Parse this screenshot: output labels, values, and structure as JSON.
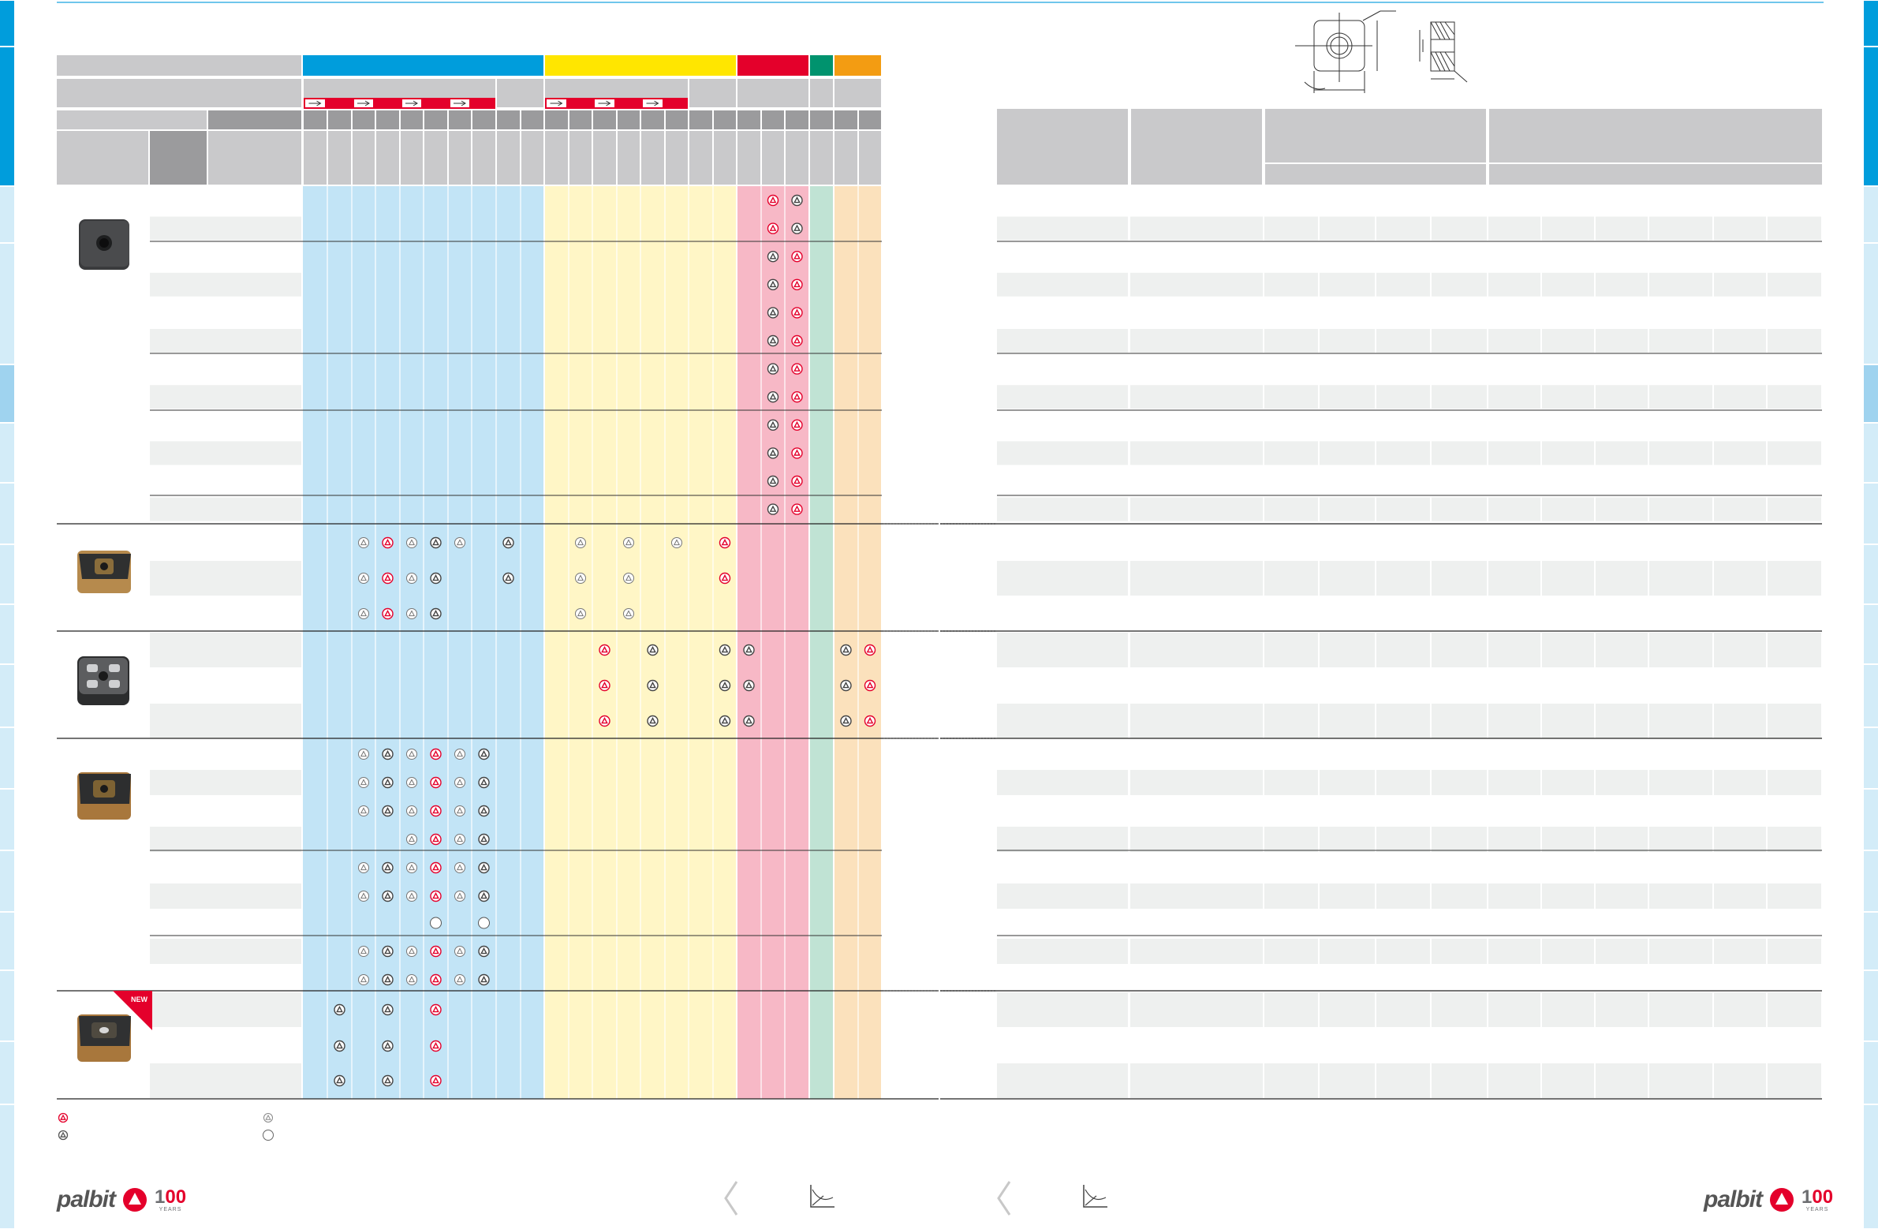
{
  "colors": {
    "blue": "#009ddc",
    "yellow": "#ffe600",
    "red": "#e4002b",
    "green": "#00936e",
    "orange": "#f39c12",
    "light_blue": "#c2e4f6",
    "light_yellow": "#fff6c6",
    "light_pink": "#f7b8c6",
    "light_green": "#c0e3d4",
    "light_orange": "#fbe1bc",
    "header_gray": "#c9c9cb",
    "dark_gray": "#9b9b9d",
    "row_gray": "#eef0ef",
    "tab_blue": "#009ddc",
    "tab_light": "#d3ecf8"
  },
  "header_bands": [
    "blue",
    "yellow",
    "red",
    "green",
    "orange"
  ],
  "badge": {
    "new_label": "NEW"
  },
  "legend": {
    "icons": [
      "red-triangle-icon",
      "gray-triangle-icon",
      "outline-triangle-icon",
      "circle-icon"
    ]
  },
  "footer": {
    "brand": "palbit",
    "years_number": "100",
    "years_label": "YEARS"
  },
  "product_rows": [
    {
      "product": "insert-plain-black",
      "grades": [
        [
          0,
          0,
          0,
          0,
          0,
          0,
          0,
          0,
          0,
          0,
          0,
          0,
          0,
          0,
          0,
          0,
          0,
          0,
          0,
          1,
          2,
          0,
          0,
          0
        ],
        [
          0,
          0,
          0,
          0,
          0,
          0,
          0,
          0,
          0,
          0,
          0,
          0,
          0,
          0,
          0,
          0,
          0,
          0,
          0,
          1,
          2,
          0,
          0,
          0
        ],
        [
          0,
          0,
          0,
          0,
          0,
          0,
          0,
          0,
          0,
          0,
          0,
          0,
          0,
          0,
          0,
          0,
          0,
          0,
          0,
          2,
          1,
          0,
          0,
          0
        ],
        [
          0,
          0,
          0,
          0,
          0,
          0,
          0,
          0,
          0,
          0,
          0,
          0,
          0,
          0,
          0,
          0,
          0,
          0,
          0,
          2,
          1,
          0,
          0,
          0
        ],
        [
          0,
          0,
          0,
          0,
          0,
          0,
          0,
          0,
          0,
          0,
          0,
          0,
          0,
          0,
          0,
          0,
          0,
          0,
          0,
          2,
          1,
          0,
          0,
          0
        ],
        [
          0,
          0,
          0,
          0,
          0,
          0,
          0,
          0,
          0,
          0,
          0,
          0,
          0,
          0,
          0,
          0,
          0,
          0,
          0,
          2,
          1,
          0,
          0,
          0
        ],
        [
          0,
          0,
          0,
          0,
          0,
          0,
          0,
          0,
          0,
          0,
          0,
          0,
          0,
          0,
          0,
          0,
          0,
          0,
          0,
          2,
          1,
          0,
          0,
          0
        ],
        [
          0,
          0,
          0,
          0,
          0,
          0,
          0,
          0,
          0,
          0,
          0,
          0,
          0,
          0,
          0,
          0,
          0,
          0,
          0,
          2,
          1,
          0,
          0,
          0
        ],
        [
          0,
          0,
          0,
          0,
          0,
          0,
          0,
          0,
          0,
          0,
          0,
          0,
          0,
          0,
          0,
          0,
          0,
          0,
          0,
          2,
          1,
          0,
          0,
          0
        ],
        [
          0,
          0,
          0,
          0,
          0,
          0,
          0,
          0,
          0,
          0,
          0,
          0,
          0,
          0,
          0,
          0,
          0,
          0,
          0,
          2,
          1,
          0,
          0,
          0
        ],
        [
          0,
          0,
          0,
          0,
          0,
          0,
          0,
          0,
          0,
          0,
          0,
          0,
          0,
          0,
          0,
          0,
          0,
          0,
          0,
          2,
          1,
          0,
          0,
          0
        ],
        [
          0,
          0,
          0,
          0,
          0,
          0,
          0,
          0,
          0,
          0,
          0,
          0,
          0,
          0,
          0,
          0,
          0,
          0,
          0,
          2,
          1,
          0,
          0,
          0
        ]
      ]
    },
    {
      "product": "insert-chipbreaker-a",
      "grades": [
        [
          0,
          0,
          3,
          1,
          3,
          2,
          3,
          0,
          2,
          0,
          0,
          3,
          0,
          3,
          0,
          3,
          0,
          1,
          0,
          0,
          0,
          0,
          0,
          0
        ],
        [
          0,
          0,
          3,
          1,
          3,
          2,
          0,
          0,
          2,
          0,
          0,
          3,
          0,
          3,
          0,
          0,
          0,
          1,
          0,
          0,
          0,
          0,
          0,
          0
        ],
        [
          0,
          0,
          3,
          1,
          3,
          2,
          0,
          0,
          0,
          0,
          0,
          3,
          0,
          3,
          0,
          0,
          0,
          0,
          0,
          0,
          0,
          0,
          0,
          0
        ]
      ]
    },
    {
      "product": "insert-chipbreaker-b",
      "grades": [
        [
          0,
          0,
          0,
          0,
          0,
          0,
          0,
          0,
          0,
          0,
          0,
          0,
          1,
          0,
          2,
          0,
          0,
          2,
          2,
          0,
          0,
          0,
          2,
          1
        ],
        [
          0,
          0,
          0,
          0,
          0,
          0,
          0,
          0,
          0,
          0,
          0,
          0,
          1,
          0,
          2,
          0,
          0,
          2,
          2,
          0,
          0,
          0,
          2,
          1
        ],
        [
          0,
          0,
          0,
          0,
          0,
          0,
          0,
          0,
          0,
          0,
          0,
          0,
          1,
          0,
          2,
          0,
          0,
          2,
          2,
          0,
          0,
          0,
          2,
          1
        ]
      ]
    },
    {
      "product": "insert-chipbreaker-c",
      "grades": [
        [
          0,
          0,
          3,
          2,
          3,
          1,
          3,
          2,
          0,
          0,
          0,
          0,
          0,
          0,
          0,
          0,
          0,
          0,
          0,
          0,
          0,
          0,
          0,
          0
        ],
        [
          0,
          0,
          3,
          2,
          3,
          1,
          3,
          2,
          0,
          0,
          0,
          0,
          0,
          0,
          0,
          0,
          0,
          0,
          0,
          0,
          0,
          0,
          0,
          0
        ],
        [
          0,
          0,
          3,
          2,
          3,
          1,
          3,
          2,
          0,
          0,
          0,
          0,
          0,
          0,
          0,
          0,
          0,
          0,
          0,
          0,
          0,
          0,
          0,
          0
        ],
        [
          0,
          0,
          0,
          0,
          3,
          1,
          3,
          2,
          0,
          0,
          0,
          0,
          0,
          0,
          0,
          0,
          0,
          0,
          0,
          0,
          0,
          0,
          0,
          0
        ],
        [
          0,
          0,
          3,
          2,
          3,
          1,
          3,
          2,
          0,
          0,
          0,
          0,
          0,
          0,
          0,
          0,
          0,
          0,
          0,
          0,
          0,
          0,
          0,
          0
        ],
        [
          0,
          0,
          3,
          2,
          3,
          1,
          3,
          2,
          0,
          0,
          0,
          0,
          0,
          0,
          0,
          0,
          0,
          0,
          0,
          0,
          0,
          0,
          0,
          0
        ],
        [
          0,
          0,
          0,
          0,
          0,
          4,
          0,
          4,
          0,
          0,
          0,
          0,
          0,
          0,
          0,
          0,
          0,
          0,
          0,
          0,
          0,
          0,
          0,
          0
        ],
        [
          0,
          0,
          3,
          2,
          3,
          1,
          3,
          2,
          0,
          0,
          0,
          0,
          0,
          0,
          0,
          0,
          0,
          0,
          0,
          0,
          0,
          0,
          0,
          0
        ],
        [
          0,
          0,
          3,
          2,
          3,
          1,
          3,
          2,
          0,
          0,
          0,
          0,
          0,
          0,
          0,
          0,
          0,
          0,
          0,
          0,
          0,
          0,
          0,
          0
        ]
      ]
    },
    {
      "product": "insert-chipbreaker-new",
      "grades": [
        [
          0,
          2,
          0,
          2,
          0,
          1,
          0,
          0,
          0,
          0,
          0,
          0,
          0,
          0,
          0,
          0,
          0,
          0,
          0,
          0,
          0,
          0,
          0,
          0
        ],
        [
          0,
          2,
          0,
          2,
          0,
          1,
          0,
          0,
          0,
          0,
          0,
          0,
          0,
          0,
          0,
          0,
          0,
          0,
          0,
          0,
          0,
          0,
          0,
          0
        ],
        [
          0,
          2,
          0,
          2,
          0,
          1,
          0,
          0,
          0,
          0,
          0,
          0,
          0,
          0,
          0,
          0,
          0,
          0,
          0,
          0,
          0,
          0,
          0,
          0
        ]
      ]
    }
  ]
}
